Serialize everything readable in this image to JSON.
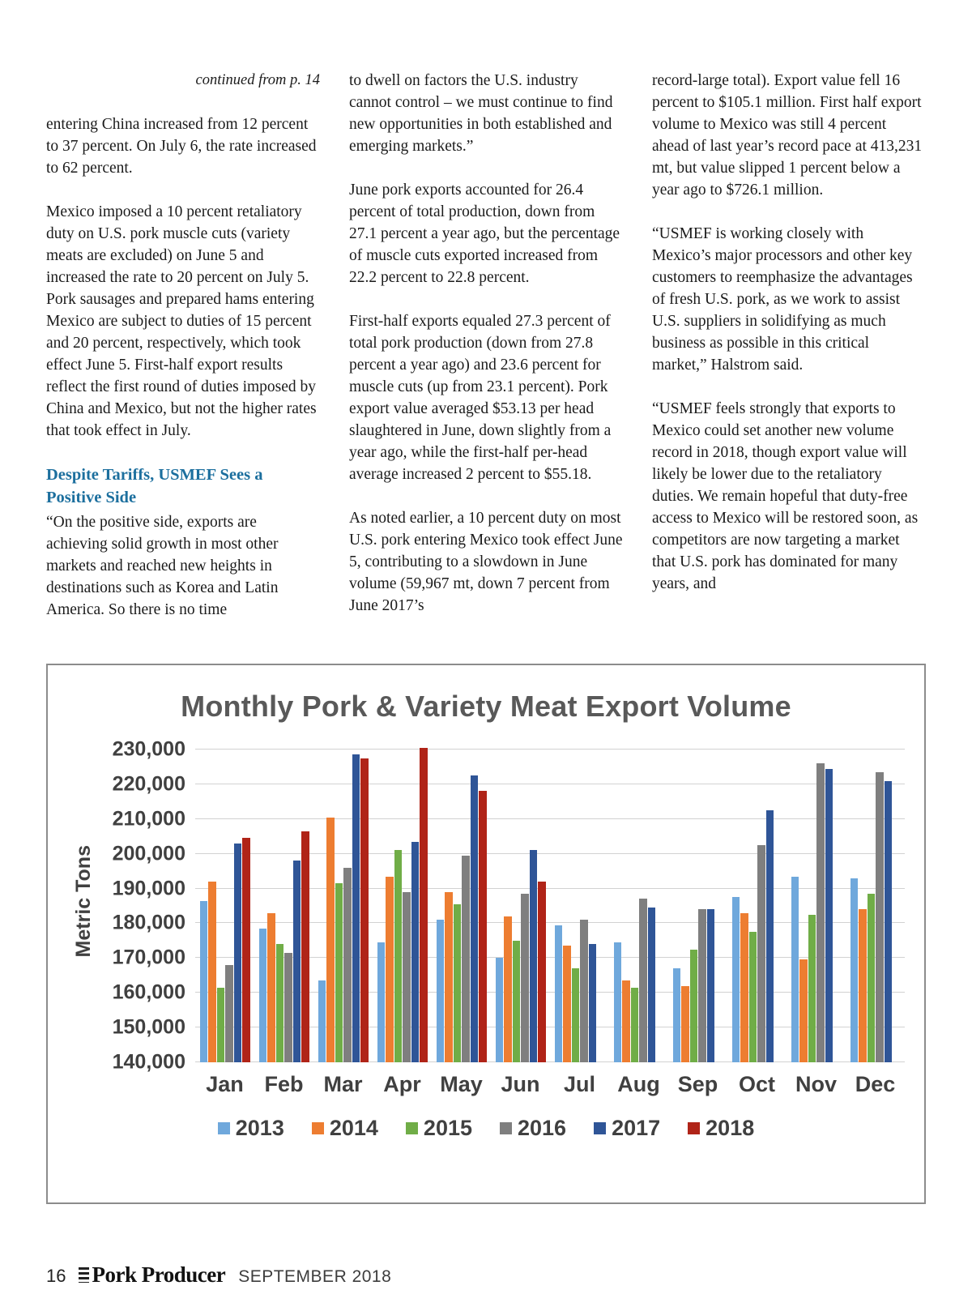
{
  "article": {
    "continued_note": "continued from p. 14",
    "col1": {
      "p1": "entering China increased from 12 percent to 37 percent. On July 6, the rate increased to 62 percent.",
      "p2": "Mexico imposed a 10 percent retaliatory duty on U.S. pork muscle cuts (variety meats are excluded) on June 5 and increased the rate to 20 percent on July 5. Pork sausages and prepared hams entering Mexico are subject to duties of 15 percent and 20 percent, respectively, which took effect June 5. First-half export results reflect the first round of duties imposed by China and Mexico, but not the higher rates that took effect in July.",
      "heading": "Despite Tariffs, USMEF Sees a Positive Side",
      "p3": "“On the positive side, exports are achieving solid growth in most other markets and reached new heights in destinations such as Korea and Latin America. So there is no time"
    },
    "col2": {
      "p1": "to dwell on factors the U.S. industry cannot control – we must continue to find new opportunities in both established and emerging markets.”",
      "p2": "June pork exports accounted for 26.4 percent of total production, down from 27.1 percent a year ago, but the percentage of muscle cuts exported increased from 22.2 percent to 22.8 percent.",
      "p3": "First-half exports equaled 27.3 percent of total pork production (down from 27.8 percent a year ago) and 23.6 percent for muscle cuts (up from 23.1 percent). Pork export value averaged $53.13 per head slaughtered in June, down slightly from a year ago, while the first-half per-head average increased 2 percent to $55.18.",
      "p4": "As noted earlier, a 10 percent duty on most U.S. pork entering Mexico took effect June 5, contributing to a slowdown in June volume (59,967 mt, down 7 percent from June 2017’s"
    },
    "col3": {
      "p1": "record-large total). Export value fell 16 percent to $105.1 million. First half export volume to Mexico was still 4 percent ahead of last year’s record pace at 413,231 mt, but value slipped 1 percent below a year ago to $726.1 million.",
      "p2": "“USMEF is working closely with Mexico’s major processors and other key customers to reemphasize the advantages of fresh U.S. pork, as we work to assist U.S. suppliers in solidifying as much business as possible in this critical market,” Halstrom said.",
      "p3": "“USMEF feels strongly that exports to Mexico could set another new volume record in 2018, though export value will likely be lower due to the retaliatory duties. We remain hopeful that duty-free access to Mexico will be restored soon, as competitors are now targeting a market that U.S. pork has dominated for many years, and"
    }
  },
  "chart_data": {
    "type": "bar",
    "title": "Monthly Pork & Variety Meat Export Volume",
    "ylabel": "Metric Tons",
    "xlabel": "",
    "grid": true,
    "legend_position": "bottom",
    "ylim": [
      140000,
      230000
    ],
    "ytick_step": 10000,
    "yticks": [
      "140,000",
      "150,000",
      "160,000",
      "170,000",
      "180,000",
      "190,000",
      "200,000",
      "210,000",
      "220,000",
      "230,000"
    ],
    "categories": [
      "Jan",
      "Feb",
      "Mar",
      "Apr",
      "May",
      "Jun",
      "Jul",
      "Aug",
      "Sep",
      "Oct",
      "Nov",
      "Dec"
    ],
    "series": [
      {
        "name": "2013",
        "color": "#6FA8DC",
        "values": [
          186500,
          178500,
          163500,
          174500,
          181000,
          170000,
          179500,
          174500,
          167000,
          187500,
          193500,
          193000
        ]
      },
      {
        "name": "2014",
        "color": "#ED7D31",
        "values": [
          192000,
          183000,
          210500,
          193500,
          189000,
          182000,
          173500,
          163500,
          162000,
          183000,
          169500,
          184000
        ]
      },
      {
        "name": "2015",
        "color": "#70AD47",
        "values": [
          161500,
          174000,
          191500,
          201000,
          185500,
          175000,
          167000,
          161500,
          172500,
          177500,
          182500,
          188500
        ]
      },
      {
        "name": "2016",
        "color": "#7F7F7F",
        "values": [
          168000,
          171500,
          196000,
          189000,
          199500,
          188500,
          181000,
          187000,
          184000,
          202500,
          226000,
          223500
        ]
      },
      {
        "name": "2017",
        "color": "#2F5597",
        "values": [
          203000,
          198000,
          228500,
          203500,
          222500,
          201000,
          174000,
          184500,
          184000,
          212500,
          224500,
          221000
        ]
      },
      {
        "name": "2018",
        "color": "#B02418",
        "values": [
          204500,
          206500,
          227500,
          230500,
          218000,
          192000,
          null,
          null,
          null,
          null,
          null,
          null
        ]
      }
    ]
  },
  "footer": {
    "page_number": "16",
    "magazine": "Pork Producer",
    "issue": "SEPTEMBER 2018"
  }
}
